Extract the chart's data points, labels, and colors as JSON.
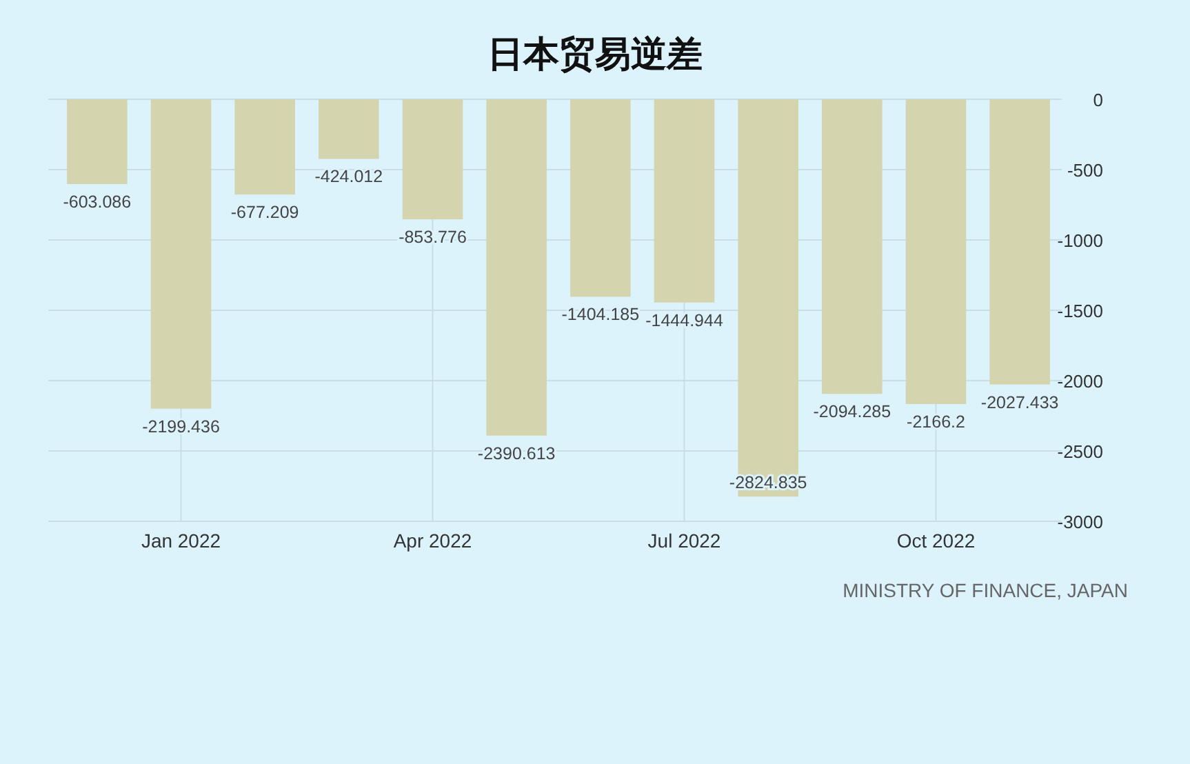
{
  "chart_data": {
    "type": "bar",
    "title": "日本贸易逆差",
    "categories": [
      null,
      "Jan 2022",
      null,
      null,
      "Apr 2022",
      null,
      null,
      "Jul 2022",
      null,
      null,
      "Oct 2022",
      null
    ],
    "values": [
      -603.086,
      -2199.436,
      -677.209,
      -424.012,
      -853.776,
      -2390.613,
      -1404.185,
      -1444.944,
      -2824.835,
      -2094.285,
      -2166.2,
      -2027.433
    ],
    "color": "#d4d5ae",
    "ylim": [
      -3000,
      0
    ],
    "yticks": [
      0,
      -500,
      -1000,
      -1500,
      -2000,
      -2500,
      -3000
    ],
    "grid": true,
    "data_labels": true,
    "annotations": [
      "MINISTRY OF FINANCE, JAPAN"
    ]
  }
}
